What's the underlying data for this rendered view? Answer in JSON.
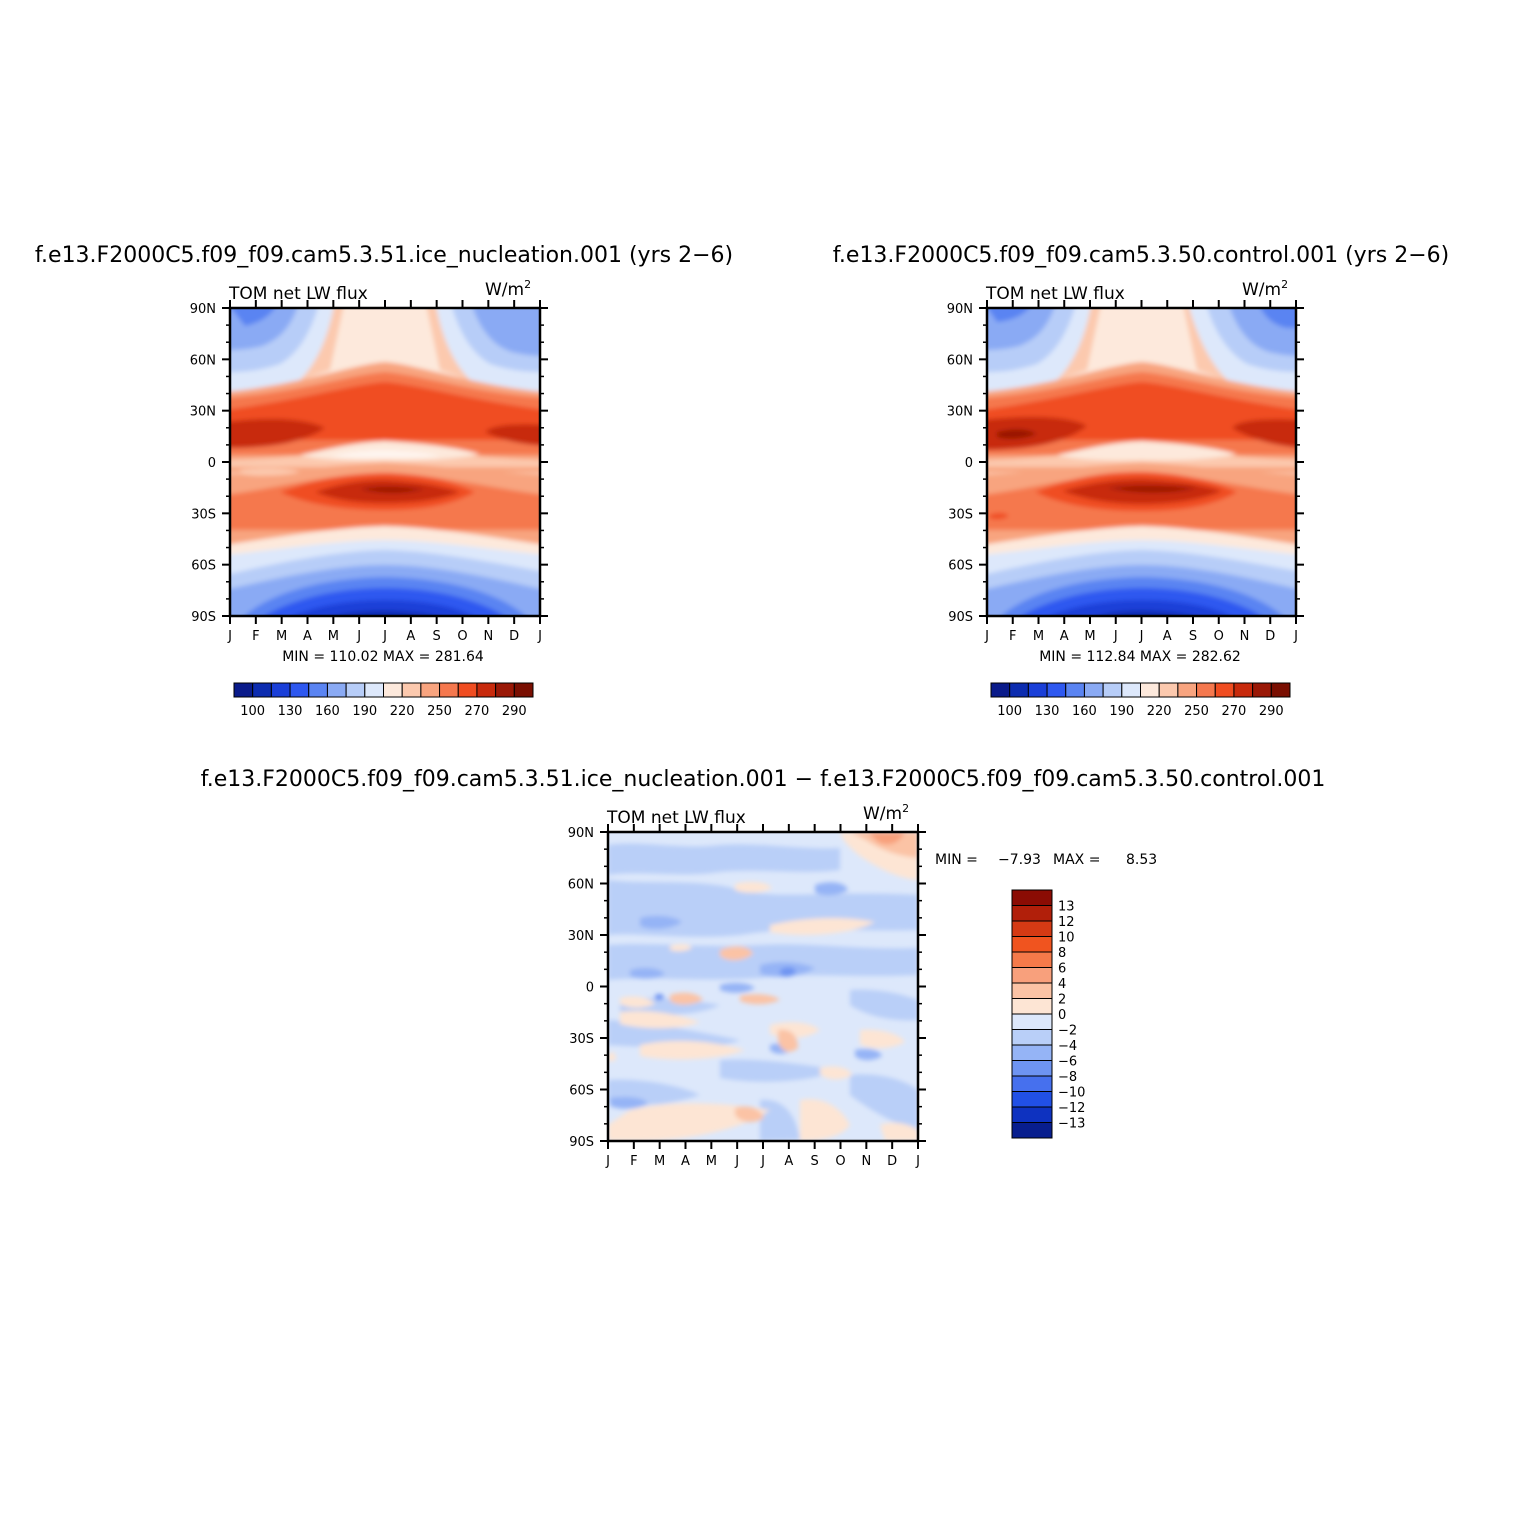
{
  "panels": [
    {
      "id": "ice",
      "title": "f.e13.F2000C5.f09_f09.cam5.3.51.ice_nucleation.001  (yrs 2−6)",
      "variable": "TOM  net  LW  flux",
      "units": "W/m",
      "units_sup": "2",
      "stats": "MIN =  110.02  MAX =  281.64"
    },
    {
      "id": "ctrl",
      "title": "f.e13.F2000C5.f09_f09.cam5.3.50.control.001  (yrs 2−6)",
      "variable": "TOM  net  LW  flux",
      "units": "W/m",
      "units_sup": "2",
      "stats": "MIN =  112.84  MAX =  282.62"
    },
    {
      "id": "diff",
      "title": "f.e13.F2000C5.f09_f09.cam5.3.51.ice_nucleation.001  −  f.e13.F2000C5.f09_f09.cam5.3.50.control.001",
      "variable": "TOM  net  LW  flux",
      "units": "W/m",
      "units_sup": "2",
      "stats_min_label": "MIN =",
      "stats_min": "−7.93",
      "stats_max_label": "MAX =",
      "stats_max": "8.53"
    }
  ],
  "chart_data": [
    {
      "type": "heatmap",
      "title": "f.e13.F2000C5.f09_f09.cam5.3.51.ice_nucleation.001 (yrs 2-6)",
      "subtitle": "TOM net LW flux",
      "units": "W/m2",
      "x": [
        "J",
        "F",
        "M",
        "A",
        "M",
        "J",
        "J",
        "A",
        "S",
        "O",
        "N",
        "D",
        "J"
      ],
      "y": [
        "90N",
        "60N",
        "30N",
        "0",
        "30S",
        "60S",
        "90S"
      ],
      "min": 110.02,
      "max": 281.64,
      "colorbar_levels": [
        100,
        115,
        130,
        145,
        160,
        175,
        190,
        205,
        220,
        235,
        250,
        260,
        270,
        280,
        290
      ],
      "colorbar_labels": [
        "100",
        "130",
        "160",
        "190",
        "220",
        "250",
        "270",
        "290"
      ]
    },
    {
      "type": "heatmap",
      "title": "f.e13.F2000C5.f09_f09.cam5.3.50.control.001 (yrs 2-6)",
      "subtitle": "TOM net LW flux",
      "units": "W/m2",
      "x": [
        "J",
        "F",
        "M",
        "A",
        "M",
        "J",
        "J",
        "A",
        "S",
        "O",
        "N",
        "D",
        "J"
      ],
      "y": [
        "90N",
        "60N",
        "30N",
        "0",
        "30S",
        "60S",
        "90S"
      ],
      "min": 112.84,
      "max": 282.62,
      "colorbar_levels": [
        100,
        115,
        130,
        145,
        160,
        175,
        190,
        205,
        220,
        235,
        250,
        260,
        270,
        280,
        290
      ],
      "colorbar_labels": [
        "100",
        "130",
        "160",
        "190",
        "220",
        "250",
        "270",
        "290"
      ]
    },
    {
      "type": "heatmap",
      "title": "f.e13.F2000C5.f09_f09.cam5.3.51.ice_nucleation.001 - f.e13.F2000C5.f09_f09.cam5.3.50.control.001",
      "subtitle": "TOM net LW flux",
      "units": "W/m2",
      "x": [
        "J",
        "F",
        "M",
        "A",
        "M",
        "J",
        "J",
        "A",
        "S",
        "O",
        "N",
        "D",
        "J"
      ],
      "y": [
        "90N",
        "60N",
        "30N",
        "0",
        "30S",
        "60S",
        "90S"
      ],
      "min": -7.93,
      "max": 8.53,
      "colorbar_labels": [
        "13",
        "12",
        "10",
        "8",
        "6",
        "4",
        "2",
        "0",
        "−2",
        "−4",
        "−6",
        "−8",
        "−10",
        "−12",
        "−13"
      ]
    }
  ],
  "colors": {
    "abs_scale": [
      "#0a1b8a",
      "#0c2cb0",
      "#1a3fd8",
      "#2e58f0",
      "#5a84f2",
      "#8aaaf4",
      "#b7cdf8",
      "#dde8fb",
      "#fde9dc",
      "#fcc9ae",
      "#f8a47f",
      "#f5784e",
      "#f04d21",
      "#c82a0c",
      "#9a1806",
      "#7a0f02"
    ],
    "diff_scale": [
      "#8b0c04",
      "#b11f0a",
      "#d53a14",
      "#f0541f",
      "#f57a4a",
      "#f8a07c",
      "#fbc3a5",
      "#fde5d4",
      "#dde8fb",
      "#b9cff8",
      "#95b4f6",
      "#6e94f2",
      "#4670ee",
      "#2150e6",
      "#0e32c0",
      "#081e8e"
    ]
  }
}
